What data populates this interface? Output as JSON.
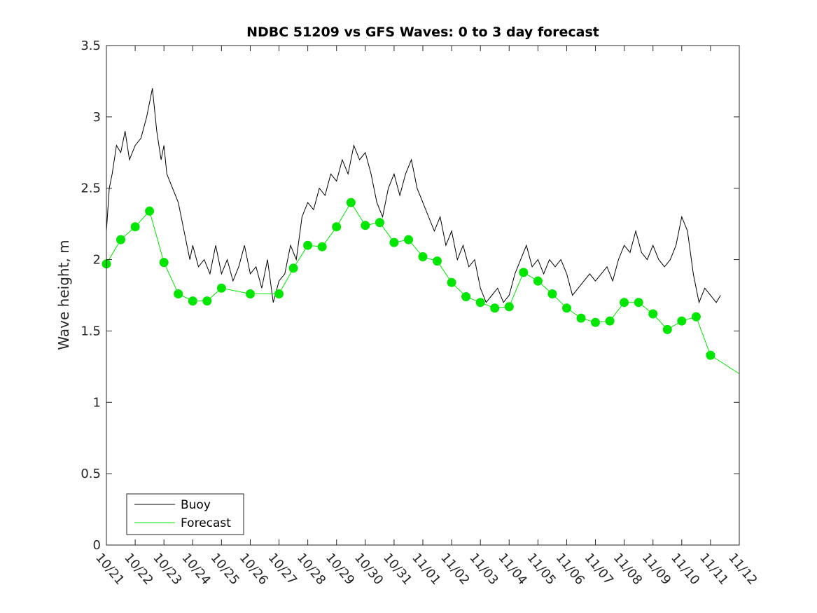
{
  "chart_data": {
    "type": "line",
    "title": "NDBC 51209 vs GFS Waves: 0 to 3 day forecast",
    "xlabel": "",
    "ylabel": "Wave height, m",
    "ylim": [
      0,
      3.5
    ],
    "yticks": [
      0,
      0.5,
      1,
      1.5,
      2,
      2.5,
      3,
      3.5
    ],
    "ytick_labels": [
      "0",
      "0.5",
      "1",
      "1.5",
      "2",
      "2.5",
      "3",
      "3.5"
    ],
    "xlim": [
      0,
      22
    ],
    "xtick_labels": [
      "10/21",
      "10/22",
      "10/23",
      "10/24",
      "10/25",
      "10/26",
      "10/27",
      "10/28",
      "10/29",
      "10/30",
      "10/31",
      "11/01",
      "11/02",
      "11/03",
      "11/04",
      "11/05",
      "11/06",
      "11/07",
      "11/08",
      "11/09",
      "11/10",
      "11/11",
      "11/12"
    ],
    "legend": {
      "location": "bottom-left",
      "entries": [
        "Buoy",
        "Forecast"
      ]
    },
    "colors": {
      "buoy": "#000000",
      "forecast": "#00e600"
    },
    "series": [
      {
        "name": "Buoy",
        "x": [
          0,
          0.1,
          0.2,
          0.35,
          0.5,
          0.65,
          0.8,
          1.0,
          1.2,
          1.4,
          1.6,
          1.75,
          1.9,
          2.0,
          2.1,
          2.3,
          2.5,
          2.7,
          2.9,
          3.0,
          3.2,
          3.4,
          3.6,
          3.8,
          4.0,
          4.2,
          4.4,
          4.6,
          4.8,
          5.0,
          5.2,
          5.4,
          5.6,
          5.8,
          6.0,
          6.2,
          6.4,
          6.6,
          6.8,
          7.0,
          7.2,
          7.4,
          7.6,
          7.8,
          8.0,
          8.2,
          8.4,
          8.6,
          8.8,
          9.0,
          9.2,
          9.4,
          9.6,
          9.8,
          10.0,
          10.2,
          10.4,
          10.6,
          10.8,
          11.0,
          11.2,
          11.4,
          11.6,
          11.8,
          12.0,
          12.2,
          12.4,
          12.6,
          12.8,
          13.0,
          13.2,
          13.4,
          13.6,
          13.8,
          14.0,
          14.2,
          14.4,
          14.6,
          14.8,
          15.0,
          15.2,
          15.4,
          15.6,
          15.8,
          16.0,
          16.2,
          16.4,
          16.6,
          16.8,
          17.0,
          17.2,
          17.4,
          17.6,
          17.8,
          18.0,
          18.2,
          18.4,
          18.6,
          18.8,
          19.0,
          19.2,
          19.4,
          19.6,
          19.8,
          20.0,
          20.2,
          20.4,
          20.6,
          20.8,
          21.0,
          21.2,
          21.35
        ],
        "y": [
          2.2,
          2.5,
          2.6,
          2.8,
          2.75,
          2.9,
          2.7,
          2.8,
          2.85,
          3.0,
          3.2,
          2.9,
          2.7,
          2.8,
          2.6,
          2.5,
          2.4,
          2.2,
          2.0,
          2.1,
          1.95,
          2.0,
          1.9,
          2.1,
          1.9,
          2.0,
          1.85,
          1.95,
          2.1,
          1.9,
          1.95,
          1.8,
          2.0,
          1.7,
          1.85,
          1.9,
          2.1,
          2.0,
          2.3,
          2.4,
          2.35,
          2.5,
          2.45,
          2.6,
          2.55,
          2.7,
          2.6,
          2.8,
          2.7,
          2.75,
          2.6,
          2.4,
          2.3,
          2.5,
          2.6,
          2.45,
          2.6,
          2.7,
          2.5,
          2.4,
          2.3,
          2.2,
          2.3,
          2.1,
          2.2,
          2.0,
          2.1,
          1.95,
          2.0,
          1.8,
          1.7,
          1.75,
          1.8,
          1.7,
          1.75,
          1.9,
          2.0,
          2.1,
          1.95,
          2.0,
          1.9,
          2.0,
          1.95,
          2.0,
          1.9,
          1.75,
          1.8,
          1.85,
          1.9,
          1.85,
          1.9,
          1.95,
          1.85,
          2.0,
          2.1,
          2.05,
          2.2,
          2.05,
          2.0,
          2.1,
          2.0,
          1.95,
          2.0,
          2.1,
          2.3,
          2.2,
          1.9,
          1.7,
          1.8,
          1.75,
          1.7,
          1.75
        ]
      },
      {
        "name": "Forecast",
        "x": [
          0,
          0.5,
          1.0,
          1.5,
          2.0,
          2.5,
          3.0,
          3.5,
          4.0,
          5.0,
          6.0,
          6.5,
          7.0,
          7.5,
          8.0,
          8.5,
          9.0,
          9.5,
          10.0,
          10.5,
          11.0,
          11.5,
          12.0,
          12.5,
          13.0,
          13.5,
          14.0,
          14.5,
          15.0,
          15.5,
          16.0,
          16.5,
          17.0,
          17.5,
          18.0,
          18.5,
          19.0,
          19.5,
          20.0,
          20.5,
          21.0,
          22.0
        ],
        "y": [
          1.97,
          2.14,
          2.23,
          2.34,
          1.98,
          1.76,
          1.71,
          1.71,
          1.8,
          1.76,
          1.76,
          1.94,
          2.1,
          2.09,
          2.23,
          2.4,
          2.24,
          2.26,
          2.12,
          2.14,
          2.02,
          1.99,
          1.84,
          1.74,
          1.7,
          1.66,
          1.67,
          1.91,
          1.85,
          1.76,
          1.66,
          1.59,
          1.56,
          1.57,
          1.7,
          1.7,
          1.62,
          1.51,
          1.57,
          1.6,
          1.33,
          1.2
        ]
      }
    ],
    "forecast_markers": {
      "x": [
        0,
        0.5,
        1.0,
        1.5,
        2.0,
        2.5,
        3.0,
        3.5,
        4.0,
        5.0,
        6.0,
        6.5,
        7.0,
        7.5,
        8.0,
        8.5,
        9.0,
        9.5,
        10.0,
        10.5,
        11.0,
        11.5,
        12.0,
        12.5,
        13.0,
        13.5,
        14.0,
        14.5,
        15.0,
        15.5,
        16.0,
        16.5,
        17.0,
        17.5,
        18.0,
        18.5,
        19.0,
        19.5,
        20.0,
        20.5,
        21.0
      ],
      "y": [
        1.97,
        2.14,
        2.23,
        2.34,
        1.98,
        1.76,
        1.71,
        1.71,
        1.8,
        1.76,
        1.76,
        1.94,
        2.1,
        2.09,
        2.23,
        2.4,
        2.24,
        2.26,
        2.12,
        2.14,
        2.02,
        1.99,
        1.84,
        1.74,
        1.7,
        1.66,
        1.67,
        1.91,
        1.85,
        1.76,
        1.66,
        1.59,
        1.56,
        1.57,
        1.7,
        1.7,
        1.62,
        1.51,
        1.57,
        1.6,
        1.33
      ]
    }
  }
}
